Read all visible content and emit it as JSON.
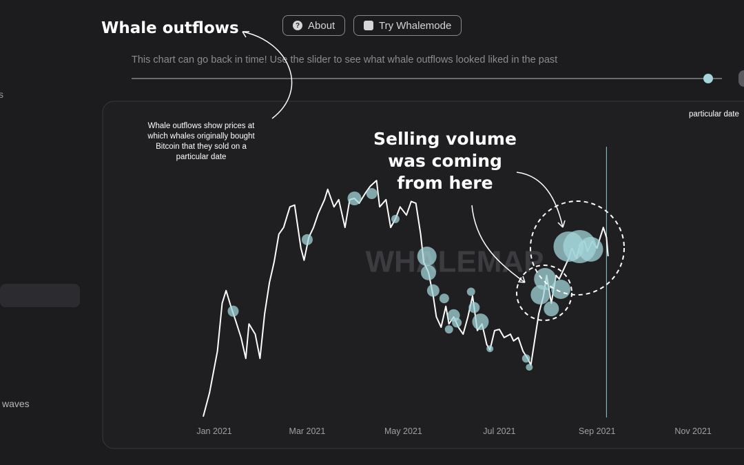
{
  "header": {
    "title": "Whale outflows",
    "buttons": [
      "About",
      "Try Whalemode"
    ],
    "description": "This chart can go back in time! Use the slider to see what whale outflows looked liked in the past"
  },
  "sidebar": {
    "fragments": [
      "s",
      "waves"
    ]
  },
  "corner_label": "particular date",
  "chart_data": {
    "type": "line",
    "watermark": "WHALEMAP",
    "annotation": [
      "Selling volume",
      "was coming",
      "from here"
    ],
    "note": [
      "Whale outflows show prices at",
      "which whales originally bought",
      "Bitcoin that they sold on a",
      "particular date"
    ],
    "x": [
      -7,
      -3,
      2,
      5,
      7.5,
      10.5,
      13.5,
      17,
      20,
      22,
      26,
      29,
      32,
      35,
      38,
      41,
      44,
      48,
      51,
      55,
      57,
      60,
      63,
      66,
      70,
      72,
      76,
      79,
      83,
      86,
      89,
      92,
      96,
      99,
      103,
      105,
      109,
      112,
      115,
      118,
      122,
      125,
      128,
      131,
      133,
      136,
      139,
      141,
      144,
      147,
      149,
      152,
      155,
      158,
      161,
      164,
      167,
      170,
      173,
      175,
      178,
      181,
      184,
      188,
      190,
      193,
      196,
      199,
      201,
      203,
      206,
      209,
      211,
      214,
      217,
      219,
      222,
      225,
      227,
      230,
      232,
      235,
      237,
      240,
      243,
      245,
      247,
      249,
      250
    ],
    "values": [
      24000,
      27950,
      34800,
      42700,
      44800,
      42200,
      39900,
      37050,
      33600,
      39300,
      37600,
      33600,
      41000,
      46100,
      49500,
      54100,
      55200,
      58600,
      58900,
      51800,
      49800,
      53550,
      55200,
      57500,
      59800,
      61500,
      58600,
      59800,
      55200,
      59800,
      60000,
      59200,
      60900,
      62000,
      62950,
      58600,
      59800,
      55200,
      56600,
      58600,
      57250,
      59500,
      59200,
      54100,
      49500,
      47800,
      43900,
      40450,
      38750,
      42200,
      39300,
      40450,
      38750,
      37600,
      40450,
      43900,
      38200,
      39300,
      35900,
      35000,
      38200,
      38400,
      37050,
      37600,
      36500,
      37050,
      34800,
      33600,
      32500,
      35900,
      41000,
      43900,
      47300,
      42700,
      47300,
      46700,
      48400,
      50100,
      51800,
      50100,
      52400,
      52950,
      51250,
      52950,
      51800,
      53550,
      55200,
      53550,
      50450
    ],
    "color": "#ffffff",
    "bubbles": {
      "x": [
        12,
        59,
        89,
        100,
        115,
        135,
        136,
        139,
        146,
        149,
        152,
        154,
        163,
        165,
        169,
        175,
        198,
        200,
        207,
        210,
        214,
        220,
        225,
        232,
        239
      ],
      "values": [
        41400,
        53200,
        60000,
        60800,
        56600,
        50450,
        47750,
        44800,
        43500,
        38400,
        40700,
        39500,
        44600,
        42000,
        39650,
        35200,
        33600,
        32150,
        44100,
        46700,
        41800,
        45000,
        52050,
        52050,
        51600
      ],
      "sizes": [
        8,
        8,
        10,
        8,
        6,
        14,
        11,
        9,
        7,
        6,
        9,
        7,
        6,
        8,
        12,
        5,
        6,
        5,
        14,
        16,
        11,
        14,
        22,
        24,
        18
      ],
      "color": "#a3d5da"
    },
    "cursor_x": 249,
    "cursor_color": "#8fd3d8",
    "xlim": [
      -70,
      335
    ],
    "ylim": [
      20000,
      70000
    ],
    "xticks": [
      {
        "value": 0,
        "label": "Jan 2021"
      },
      {
        "value": 59,
        "label": "Mar 2021"
      },
      {
        "value": 120,
        "label": "May 2021"
      },
      {
        "value": 181,
        "label": "Jul 2021"
      },
      {
        "value": 243,
        "label": "Sep 2021"
      },
      {
        "value": 304,
        "label": "Nov 2021"
      }
    ]
  }
}
